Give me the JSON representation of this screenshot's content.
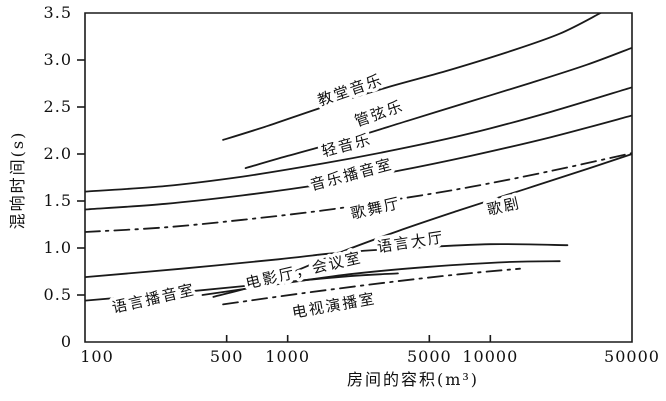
{
  "figure": {
    "background": "#ffffff",
    "line_color": "#1a1a1a",
    "text_color": "#111111"
  },
  "chart_data": {
    "type": "line",
    "title": "",
    "xlabel": "房间的容积(m³)",
    "ylabel": "混响时间(s)",
    "x_scale": "log",
    "y_scale": "linear",
    "xlim": [
      100,
      50000
    ],
    "ylim": [
      0,
      3.5
    ],
    "grid": false,
    "legend_position": "labels-on-curves",
    "x_ticks": [
      {
        "value": 100,
        "label": "100"
      },
      {
        "value": 500,
        "label": "500"
      },
      {
        "value": 1000,
        "label": "1000"
      },
      {
        "value": 5000,
        "label": "5000"
      },
      {
        "value": 10000,
        "label": "10000"
      },
      {
        "value": 50000,
        "label": "50000"
      }
    ],
    "y_ticks": [
      {
        "value": 0,
        "label": "0"
      },
      {
        "value": 0.5,
        "label": "0.5"
      },
      {
        "value": 1.0,
        "label": "1.0"
      },
      {
        "value": 1.5,
        "label": "1.5"
      },
      {
        "value": 2.0,
        "label": "2.0"
      },
      {
        "value": 2.5,
        "label": "2.5"
      },
      {
        "value": 3.0,
        "label": "3.0"
      },
      {
        "value": 3.5,
        "label": "3.5"
      }
    ],
    "series": [
      {
        "id": "church-music",
        "name": "教堂音乐",
        "style": "solid",
        "points": [
          [
            480,
            2.15
          ],
          [
            800,
            2.3
          ],
          [
            1500,
            2.5
          ],
          [
            3000,
            2.7
          ],
          [
            6000,
            2.88
          ],
          [
            12000,
            3.08
          ],
          [
            22000,
            3.28
          ],
          [
            35000,
            3.5
          ]
        ],
        "label_pos": [
          2075,
          2.63
        ],
        "label_rot": -19
      },
      {
        "id": "orchestral-music",
        "name": "管弦乐",
        "style": "solid",
        "points": [
          [
            620,
            1.85
          ],
          [
            1000,
            1.98
          ],
          [
            2000,
            2.16
          ],
          [
            4000,
            2.36
          ],
          [
            8000,
            2.56
          ],
          [
            16000,
            2.76
          ],
          [
            30000,
            2.95
          ],
          [
            50000,
            3.13
          ]
        ],
        "label_pos": [
          2880,
          2.38
        ],
        "label_rot": -19
      },
      {
        "id": "light-music",
        "name": "轻音乐",
        "style": "solid",
        "points": [
          [
            100,
            1.6
          ],
          [
            250,
            1.66
          ],
          [
            600,
            1.76
          ],
          [
            1500,
            1.9
          ],
          [
            3500,
            2.05
          ],
          [
            8000,
            2.22
          ],
          [
            20000,
            2.45
          ],
          [
            50000,
            2.71
          ]
        ],
        "label_pos": [
          1983,
          2.04
        ],
        "label_rot": -15
      },
      {
        "id": "music-studio",
        "name": "音乐播音室",
        "style": "solid",
        "points": [
          [
            100,
            1.41
          ],
          [
            250,
            1.47
          ],
          [
            600,
            1.56
          ],
          [
            1500,
            1.68
          ],
          [
            3500,
            1.82
          ],
          [
            8000,
            1.98
          ],
          [
            20000,
            2.18
          ],
          [
            50000,
            2.41
          ]
        ],
        "label_pos": [
          2099,
          1.73
        ],
        "label_rot": -15
      },
      {
        "id": "dance-hall",
        "name": "歌舞厅",
        "style": "dashdot",
        "points": [
          [
            100,
            1.17
          ],
          [
            250,
            1.22
          ],
          [
            600,
            1.3
          ],
          [
            1500,
            1.4
          ],
          [
            3500,
            1.52
          ],
          [
            8000,
            1.65
          ],
          [
            20000,
            1.82
          ],
          [
            50000,
            2.01
          ]
        ],
        "label_pos": [
          2755,
          1.37
        ],
        "label_rot": -13
      },
      {
        "id": "opera",
        "name": "歌剧",
        "style": "solid",
        "points": [
          [
            430,
            0.48
          ],
          [
            800,
            0.64
          ],
          [
            1800,
            0.95
          ],
          [
            3500,
            1.18
          ],
          [
            7000,
            1.4
          ],
          [
            15000,
            1.63
          ],
          [
            30000,
            1.84
          ],
          [
            50000,
            2.0
          ]
        ],
        "label_pos": [
          11800,
          1.39
        ],
        "label_rot": -13
      },
      {
        "id": "speech-hall",
        "name": "语言大厅",
        "style": "solid",
        "points": [
          [
            100,
            0.69
          ],
          [
            300,
            0.78
          ],
          [
            900,
            0.88
          ],
          [
            1800,
            0.95
          ],
          [
            4000,
            1.0
          ],
          [
            10000,
            1.04
          ],
          [
            24000,
            1.03
          ]
        ],
        "label_pos": [
          4087,
          1.01
        ],
        "label_rot": -9
      },
      {
        "id": "cinema-conference",
        "name": "电影厅，会议室",
        "style": "solid",
        "points": [
          [
            380,
            0.5
          ],
          [
            800,
            0.6
          ],
          [
            2000,
            0.72
          ],
          [
            5000,
            0.8
          ],
          [
            12000,
            0.85
          ],
          [
            22000,
            0.86
          ]
        ],
        "label_pos": [
          1217,
          0.71
        ],
        "label_rot": -13
      },
      {
        "id": "speech-studio",
        "name": "语言播音室",
        "style": "solid",
        "points": [
          [
            100,
            0.44
          ],
          [
            300,
            0.53
          ],
          [
            800,
            0.62
          ],
          [
            2000,
            0.7
          ],
          [
            3500,
            0.73
          ]
        ],
        "label_pos": [
          221,
          0.41
        ],
        "label_rot": -13
      },
      {
        "id": "tv-studio",
        "name": "电视演播室",
        "style": "dashdot",
        "points": [
          [
            480,
            0.4
          ],
          [
            1200,
            0.52
          ],
          [
            3000,
            0.63
          ],
          [
            7000,
            0.72
          ],
          [
            14000,
            0.78
          ]
        ],
        "label_pos": [
          1710,
          0.335
        ],
        "label_rot": -10
      }
    ]
  }
}
